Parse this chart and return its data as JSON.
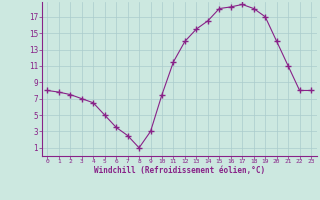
{
  "x": [
    0,
    1,
    2,
    3,
    4,
    5,
    6,
    7,
    8,
    9,
    10,
    11,
    12,
    13,
    14,
    15,
    16,
    17,
    18,
    19,
    20,
    21,
    22,
    23
  ],
  "y": [
    8.0,
    7.8,
    7.5,
    7.0,
    6.5,
    5.0,
    3.5,
    2.5,
    1.0,
    3.0,
    7.5,
    11.5,
    14.0,
    15.5,
    16.5,
    18.0,
    18.2,
    18.5,
    18.0,
    17.0,
    14.0,
    11.0,
    8.0,
    8.0
  ],
  "line_color": "#882288",
  "marker": "+",
  "marker_size": 4,
  "bg_color": "#cce8e0",
  "grid_color": "#aacccc",
  "xlabel": "Windchill (Refroidissement éolien,°C)",
  "ytick_labels": [
    1,
    3,
    5,
    7,
    9,
    11,
    13,
    15,
    17
  ],
  "xtick_labels": [
    0,
    1,
    2,
    3,
    4,
    5,
    6,
    7,
    8,
    9,
    10,
    11,
    12,
    13,
    14,
    15,
    16,
    17,
    18,
    19,
    20,
    21,
    22,
    23
  ],
  "ylim": [
    0,
    18.8
  ],
  "xlim": [
    -0.5,
    23.5
  ]
}
